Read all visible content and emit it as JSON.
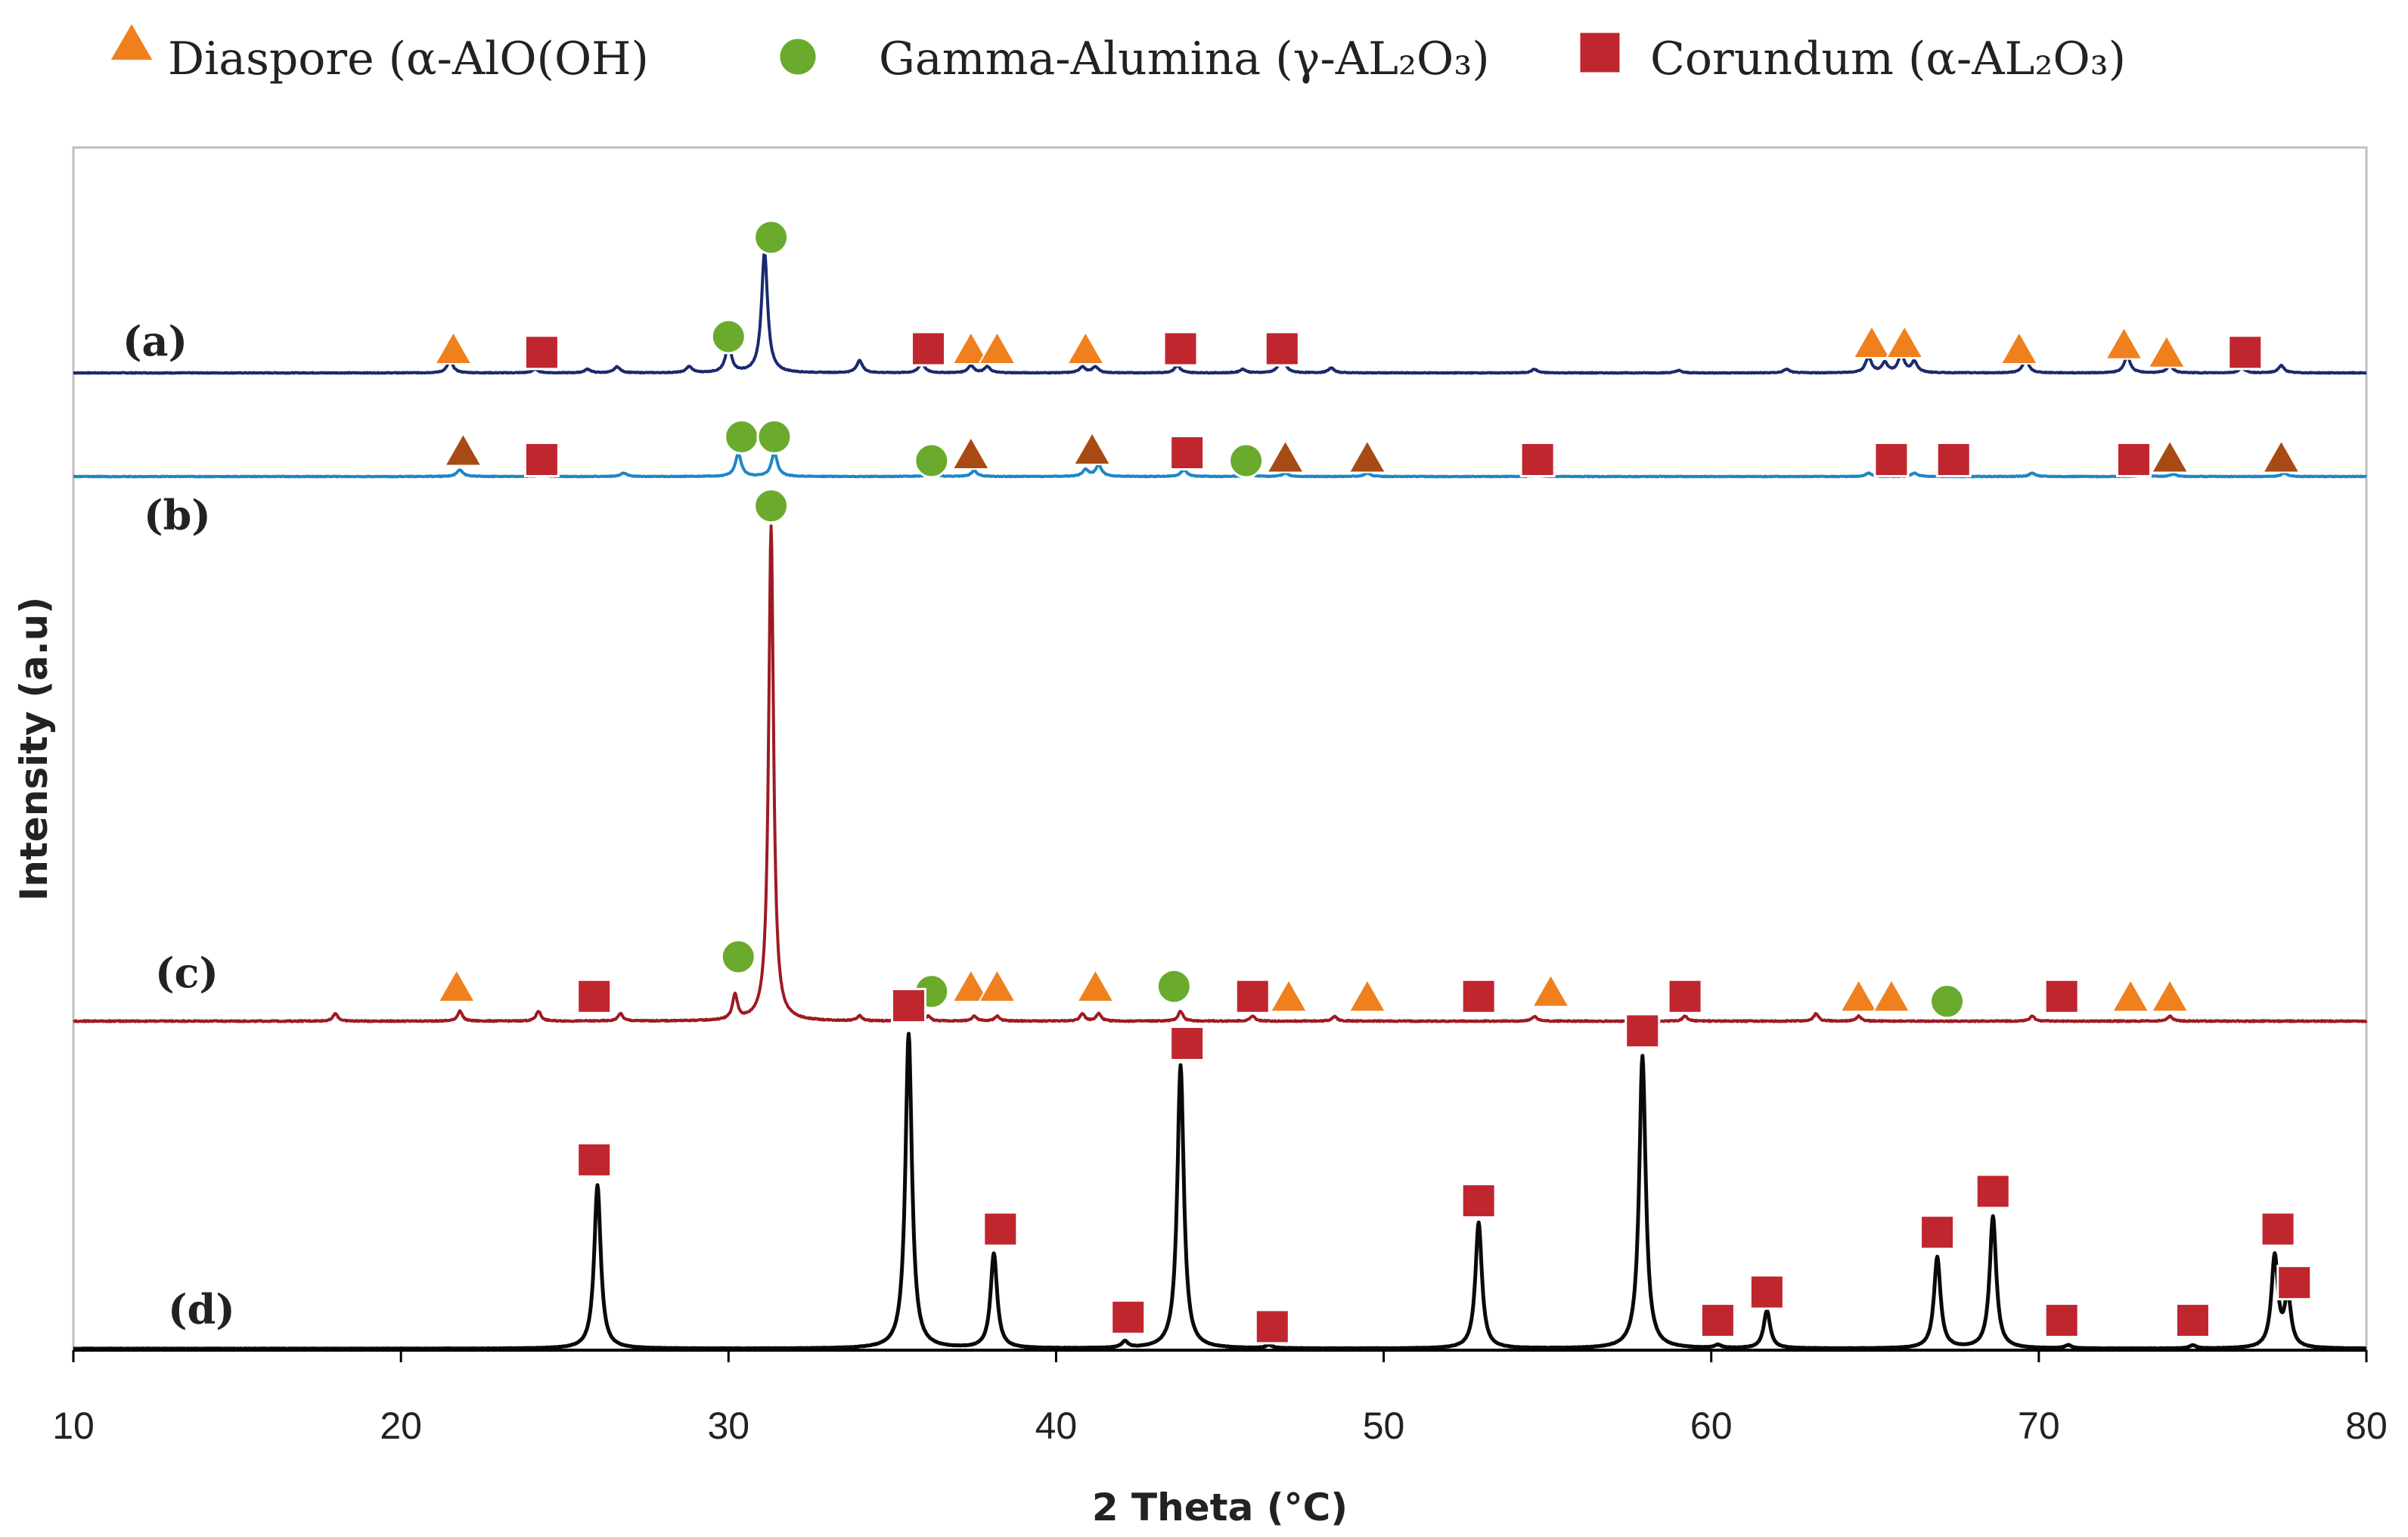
{
  "chart_data": {
    "type": "line",
    "title": "",
    "xlabel": "2 Theta (°C)",
    "ylabel": "Intensity (a.u)",
    "xlim": [
      10,
      80
    ],
    "xticks": [
      10,
      20,
      30,
      40,
      50,
      60,
      70,
      80
    ],
    "grid": false,
    "legend": {
      "position": "top",
      "entries": [
        {
          "marker": "triangle",
          "label": "Diaspore (α-AlO(OH)",
          "color": "#f0801e"
        },
        {
          "marker": "circle",
          "label": "Gamma-Alumina (γ-AL₂O₃)",
          "color": "#6aaa2c"
        },
        {
          "marker": "square",
          "label": "Corundum (α-AL₂O₃)",
          "color": "#c0262e"
        }
      ]
    },
    "series": [
      {
        "name": "(a)",
        "color": "#1a2a6e",
        "baseline": 0,
        "peaks": [
          [
            21.5,
            0.1
          ],
          [
            24.1,
            0.03
          ],
          [
            25.7,
            0.03
          ],
          [
            26.6,
            0.05
          ],
          [
            28.8,
            0.05
          ],
          [
            30.0,
            0.22
          ],
          [
            31.1,
            1.0
          ],
          [
            34.0,
            0.1
          ],
          [
            35.9,
            0.08
          ],
          [
            37.4,
            0.06
          ],
          [
            37.9,
            0.05
          ],
          [
            40.8,
            0.05
          ],
          [
            41.2,
            0.05
          ],
          [
            43.7,
            0.06
          ],
          [
            45.7,
            0.03
          ],
          [
            46.9,
            0.14
          ],
          [
            48.4,
            0.04
          ],
          [
            54.6,
            0.03
          ],
          [
            59.0,
            0.02
          ],
          [
            62.3,
            0.03
          ],
          [
            64.8,
            0.13
          ],
          [
            65.3,
            0.08
          ],
          [
            65.8,
            0.15
          ],
          [
            66.2,
            0.09
          ],
          [
            69.6,
            0.11
          ],
          [
            72.7,
            0.14
          ],
          [
            74.0,
            0.06
          ],
          [
            76.2,
            0.04
          ],
          [
            77.4,
            0.06
          ]
        ],
        "markers": [
          {
            "type": "triangle",
            "x": 21.6,
            "level": 0.2
          },
          {
            "type": "square",
            "x": 24.3,
            "level": 0.17
          },
          {
            "type": "circle",
            "x": 30.0,
            "level": 0.3
          },
          {
            "type": "circle",
            "x": 31.3,
            "level": 1.12
          },
          {
            "type": "square",
            "x": 36.1,
            "level": 0.2
          },
          {
            "type": "triangle",
            "x": 37.4,
            "level": 0.2
          },
          {
            "type": "triangle",
            "x": 38.2,
            "level": 0.2
          },
          {
            "type": "triangle",
            "x": 40.9,
            "level": 0.2
          },
          {
            "type": "square",
            "x": 43.8,
            "level": 0.2
          },
          {
            "type": "square",
            "x": 46.9,
            "level": 0.2
          },
          {
            "type": "triangle",
            "x": 64.9,
            "level": 0.25
          },
          {
            "type": "triangle",
            "x": 65.9,
            "level": 0.25
          },
          {
            "type": "triangle",
            "x": 69.4,
            "level": 0.2
          },
          {
            "type": "triangle",
            "x": 72.6,
            "level": 0.24
          },
          {
            "type": "triangle",
            "x": 73.9,
            "level": 0.17
          },
          {
            "type": "square",
            "x": 76.3,
            "level": 0.17
          }
        ]
      },
      {
        "name": "(b)",
        "color": "#1f86c6",
        "baseline": 0,
        "peaks": [
          [
            21.8,
            0.06
          ],
          [
            24.3,
            0.03
          ],
          [
            26.8,
            0.03
          ],
          [
            30.3,
            0.2
          ],
          [
            31.4,
            0.21
          ],
          [
            36.2,
            0.05
          ],
          [
            37.5,
            0.05
          ],
          [
            40.9,
            0.06
          ],
          [
            41.3,
            0.1
          ],
          [
            43.9,
            0.06
          ],
          [
            45.9,
            0.03
          ],
          [
            47.0,
            0.03
          ],
          [
            49.5,
            0.03
          ],
          [
            54.7,
            0.02
          ],
          [
            64.8,
            0.03
          ],
          [
            66.2,
            0.03
          ],
          [
            69.8,
            0.03
          ],
          [
            73.2,
            0.03
          ],
          [
            74.1,
            0.02
          ],
          [
            77.5,
            0.03
          ]
        ],
        "markers": [
          {
            "type": "triangle-dark",
            "x": 21.9,
            "level": 0.23
          },
          {
            "type": "square",
            "x": 24.3,
            "level": 0.15
          },
          {
            "type": "circle",
            "x": 30.4,
            "level": 0.35
          },
          {
            "type": "circle",
            "x": 31.4,
            "level": 0.35
          },
          {
            "type": "circle",
            "x": 36.2,
            "level": 0.14
          },
          {
            "type": "triangle-dark",
            "x": 37.4,
            "level": 0.2
          },
          {
            "type": "triangle-dark",
            "x": 41.1,
            "level": 0.24
          },
          {
            "type": "square",
            "x": 44.0,
            "level": 0.21
          },
          {
            "type": "circle",
            "x": 45.8,
            "level": 0.14
          },
          {
            "type": "triangle-dark",
            "x": 47.0,
            "level": 0.17
          },
          {
            "type": "triangle-dark",
            "x": 49.5,
            "level": 0.17
          },
          {
            "type": "square",
            "x": 54.7,
            "level": 0.15
          },
          {
            "type": "square",
            "x": 65.5,
            "level": 0.15
          },
          {
            "type": "square",
            "x": 67.4,
            "level": 0.15
          },
          {
            "type": "square",
            "x": 72.9,
            "level": 0.15
          },
          {
            "type": "triangle-dark",
            "x": 74.0,
            "level": 0.17
          },
          {
            "type": "triangle-dark",
            "x": 77.4,
            "level": 0.17
          }
        ]
      },
      {
        "name": "(c)",
        "color": "#9e1a22",
        "baseline": 0,
        "peaks": [
          [
            18.0,
            0.015
          ],
          [
            21.8,
            0.02
          ],
          [
            24.2,
            0.02
          ],
          [
            26.7,
            0.015
          ],
          [
            30.2,
            0.05
          ],
          [
            31.3,
            1.0
          ],
          [
            34.0,
            0.01
          ],
          [
            36.1,
            0.01
          ],
          [
            37.5,
            0.01
          ],
          [
            38.2,
            0.01
          ],
          [
            40.8,
            0.015
          ],
          [
            41.3,
            0.015
          ],
          [
            43.8,
            0.02
          ],
          [
            46.0,
            0.01
          ],
          [
            48.5,
            0.01
          ],
          [
            54.6,
            0.01
          ],
          [
            59.2,
            0.01
          ],
          [
            63.2,
            0.015
          ],
          [
            64.5,
            0.01
          ],
          [
            69.8,
            0.01
          ],
          [
            74.0,
            0.01
          ]
        ],
        "markers": [
          {
            "type": "triangle",
            "x": 21.7,
            "level": 0.07
          },
          {
            "type": "square",
            "x": 25.9,
            "level": 0.05
          },
          {
            "type": "circle",
            "x": 30.3,
            "level": 0.13
          },
          {
            "type": "circle",
            "x": 31.3,
            "level": 1.04
          },
          {
            "type": "circle",
            "x": 36.2,
            "level": 0.06
          },
          {
            "type": "triangle",
            "x": 37.4,
            "level": 0.07
          },
          {
            "type": "triangle",
            "x": 38.2,
            "level": 0.07
          },
          {
            "type": "triangle",
            "x": 41.2,
            "level": 0.07
          },
          {
            "type": "circle",
            "x": 43.6,
            "level": 0.07
          },
          {
            "type": "square",
            "x": 46.0,
            "level": 0.05
          },
          {
            "type": "triangle",
            "x": 47.1,
            "level": 0.05
          },
          {
            "type": "triangle",
            "x": 49.5,
            "level": 0.05
          },
          {
            "type": "square",
            "x": 52.9,
            "level": 0.05
          },
          {
            "type": "triangle",
            "x": 55.1,
            "level": 0.06
          },
          {
            "type": "square",
            "x": 59.2,
            "level": 0.05
          },
          {
            "type": "triangle",
            "x": 64.5,
            "level": 0.05
          },
          {
            "type": "triangle",
            "x": 65.5,
            "level": 0.05
          },
          {
            "type": "circle",
            "x": 67.2,
            "level": 0.04
          },
          {
            "type": "square",
            "x": 70.7,
            "level": 0.05
          },
          {
            "type": "triangle",
            "x": 72.8,
            "level": 0.05
          },
          {
            "type": "triangle",
            "x": 74.0,
            "level": 0.05
          }
        ]
      },
      {
        "name": "(d)",
        "color": "#0a0a0a",
        "baseline": 0,
        "peaks": [
          [
            26.0,
            0.52
          ],
          [
            35.5,
            1.0
          ],
          [
            38.1,
            0.3
          ],
          [
            42.1,
            0.02
          ],
          [
            43.8,
            0.9
          ],
          [
            46.5,
            0.01
          ],
          [
            52.9,
            0.4
          ],
          [
            57.9,
            0.93
          ],
          [
            60.2,
            0.01
          ],
          [
            61.7,
            0.12
          ],
          [
            66.9,
            0.29
          ],
          [
            68.6,
            0.42
          ],
          [
            70.9,
            0.01
          ],
          [
            74.7,
            0.01
          ],
          [
            77.2,
            0.29
          ],
          [
            77.6,
            0.16
          ]
        ],
        "markers": [
          {
            "type": "square",
            "x": 25.9,
            "level": 0.6
          },
          {
            "type": "square",
            "x": 35.5,
            "level": 1.09
          },
          {
            "type": "square",
            "x": 38.3,
            "level": 0.38
          },
          {
            "type": "square",
            "x": 42.2,
            "level": 0.1
          },
          {
            "type": "square",
            "x": 44.0,
            "level": 0.97
          },
          {
            "type": "square",
            "x": 46.6,
            "level": 0.07
          },
          {
            "type": "square",
            "x": 52.9,
            "level": 0.47
          },
          {
            "type": "square",
            "x": 57.9,
            "level": 1.01
          },
          {
            "type": "square",
            "x": 60.2,
            "level": 0.09
          },
          {
            "type": "square",
            "x": 61.7,
            "level": 0.18
          },
          {
            "type": "square",
            "x": 66.9,
            "level": 0.37
          },
          {
            "type": "square",
            "x": 68.6,
            "level": 0.5
          },
          {
            "type": "square",
            "x": 70.7,
            "level": 0.09
          },
          {
            "type": "square",
            "x": 74.7,
            "level": 0.09
          },
          {
            "type": "square",
            "x": 77.3,
            "level": 0.38
          },
          {
            "type": "square",
            "x": 77.8,
            "level": 0.21
          }
        ]
      }
    ]
  }
}
